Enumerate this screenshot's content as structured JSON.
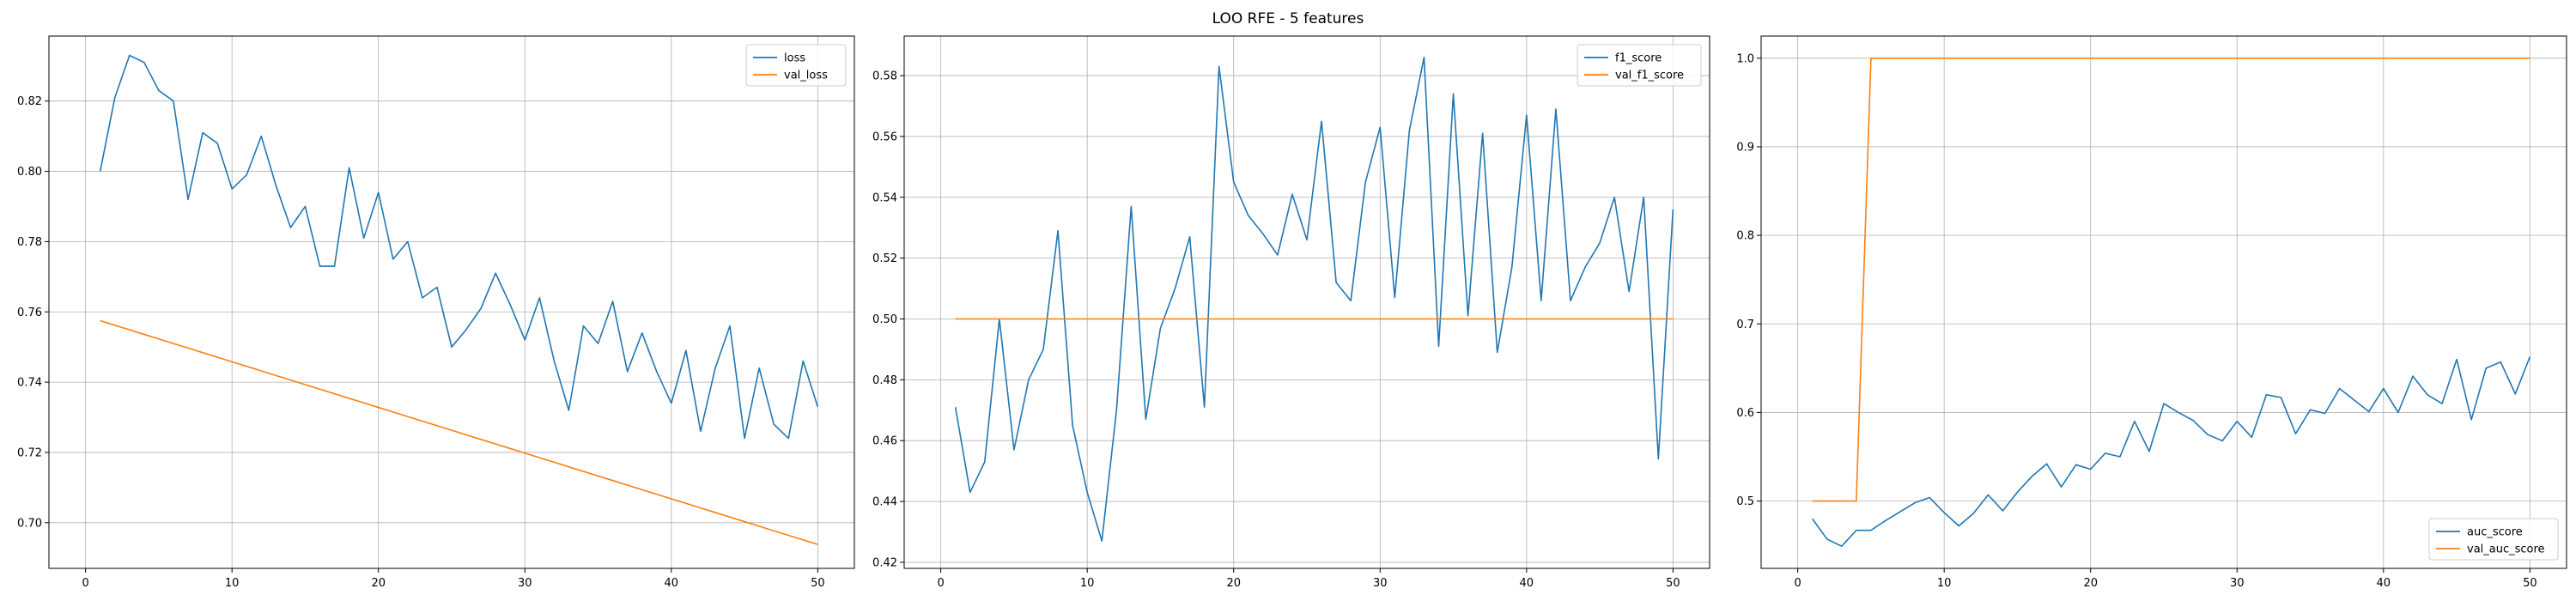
{
  "figure": {
    "suptitle": "LOO RFE - 5 features"
  },
  "colors": {
    "train": "#1f77b4",
    "val": "#ff7f0e",
    "grid": "#b0b0b0"
  },
  "chart_data": [
    {
      "type": "line",
      "title": "",
      "xlabel": "",
      "ylabel": "",
      "xlim": [
        -2.5,
        52.5
      ],
      "ylim": [
        0.687,
        0.8385
      ],
      "xticks": [
        0,
        10,
        20,
        30,
        40,
        50
      ],
      "yticks": [
        0.7,
        0.72,
        0.74,
        0.76,
        0.78,
        0.8,
        0.82
      ],
      "ytick_labels": [
        "0.70",
        "0.72",
        "0.74",
        "0.76",
        "0.78",
        "0.80",
        "0.82"
      ],
      "grid": true,
      "legend_position": "upper right",
      "x": [
        1,
        2,
        3,
        4,
        5,
        6,
        7,
        8,
        9,
        10,
        11,
        12,
        13,
        14,
        15,
        16,
        17,
        18,
        19,
        20,
        21,
        22,
        23,
        24,
        25,
        26,
        27,
        28,
        29,
        30,
        31,
        32,
        33,
        34,
        35,
        36,
        37,
        38,
        39,
        40,
        41,
        42,
        43,
        44,
        45,
        46,
        47,
        48,
        49,
        50
      ],
      "series": [
        {
          "name": "loss",
          "color": "#1f77b4",
          "values": [
            0.8,
            0.821,
            0.833,
            0.831,
            0.823,
            0.82,
            0.792,
            0.811,
            0.808,
            0.795,
            0.799,
            0.81,
            0.796,
            0.784,
            0.79,
            0.773,
            0.773,
            0.801,
            0.781,
            0.794,
            0.775,
            0.78,
            0.764,
            0.767,
            0.75,
            0.755,
            0.761,
            0.771,
            0.762,
            0.752,
            0.764,
            0.746,
            0.732,
            0.756,
            0.751,
            0.763,
            0.743,
            0.754,
            0.743,
            0.734,
            0.749,
            0.726,
            0.744,
            0.756,
            0.724,
            0.744,
            0.728,
            0.724,
            0.746,
            0.733
          ]
        },
        {
          "name": "val_loss",
          "color": "#ff7f0e",
          "values": [
            0.7575,
            0.7562,
            0.7549,
            0.7536,
            0.7523,
            0.751,
            0.7497,
            0.7484,
            0.7471,
            0.7458,
            0.7445,
            0.7432,
            0.7419,
            0.7406,
            0.7393,
            0.738,
            0.7367,
            0.7354,
            0.7341,
            0.7328,
            0.7315,
            0.7302,
            0.7289,
            0.7276,
            0.7263,
            0.725,
            0.7237,
            0.7224,
            0.7211,
            0.7198,
            0.7185,
            0.7172,
            0.7159,
            0.7146,
            0.7133,
            0.712,
            0.7107,
            0.7094,
            0.7081,
            0.7068,
            0.7055,
            0.7042,
            0.7029,
            0.7016,
            0.7003,
            0.699,
            0.6977,
            0.6964,
            0.6951,
            0.6938
          ]
        }
      ]
    },
    {
      "type": "line",
      "title": "",
      "xlabel": "",
      "ylabel": "",
      "xlim": [
        -2.5,
        52.5
      ],
      "ylim": [
        0.418,
        0.593
      ],
      "xticks": [
        0,
        10,
        20,
        30,
        40,
        50
      ],
      "yticks": [
        0.42,
        0.44,
        0.46,
        0.48,
        0.5,
        0.52,
        0.54,
        0.56,
        0.58
      ],
      "ytick_labels": [
        "0.42",
        "0.44",
        "0.46",
        "0.48",
        "0.50",
        "0.52",
        "0.54",
        "0.56",
        "0.58"
      ],
      "grid": true,
      "legend_position": "upper right",
      "x": [
        1,
        2,
        3,
        4,
        5,
        6,
        7,
        8,
        9,
        10,
        11,
        12,
        13,
        14,
        15,
        16,
        17,
        18,
        19,
        20,
        21,
        22,
        23,
        24,
        25,
        26,
        27,
        28,
        29,
        30,
        31,
        32,
        33,
        34,
        35,
        36,
        37,
        38,
        39,
        40,
        41,
        42,
        43,
        44,
        45,
        46,
        47,
        48,
        49,
        50
      ],
      "series": [
        {
          "name": "f1_score",
          "color": "#1f77b4",
          "values": [
            0.471,
            0.443,
            0.453,
            0.5,
            0.457,
            0.48,
            0.49,
            0.529,
            0.465,
            0.443,
            0.427,
            0.47,
            0.537,
            0.467,
            0.497,
            0.51,
            0.527,
            0.471,
            0.583,
            0.545,
            0.534,
            0.528,
            0.521,
            0.541,
            0.526,
            0.565,
            0.512,
            0.506,
            0.545,
            0.563,
            0.507,
            0.562,
            0.586,
            0.491,
            0.574,
            0.501,
            0.561,
            0.489,
            0.517,
            0.567,
            0.506,
            0.569,
            0.506,
            0.517,
            0.525,
            0.54,
            0.509,
            0.54,
            0.454,
            0.536
          ]
        },
        {
          "name": "val_f1_score",
          "color": "#ff7f0e",
          "values": [
            0.5,
            0.5,
            0.5,
            0.5,
            0.5,
            0.5,
            0.5,
            0.5,
            0.5,
            0.5,
            0.5,
            0.5,
            0.5,
            0.5,
            0.5,
            0.5,
            0.5,
            0.5,
            0.5,
            0.5,
            0.5,
            0.5,
            0.5,
            0.5,
            0.5,
            0.5,
            0.5,
            0.5,
            0.5,
            0.5,
            0.5,
            0.5,
            0.5,
            0.5,
            0.5,
            0.5,
            0.5,
            0.5,
            0.5,
            0.5,
            0.5,
            0.5,
            0.5,
            0.5,
            0.5,
            0.5,
            0.5,
            0.5,
            0.5,
            0.5
          ]
        }
      ]
    },
    {
      "type": "line",
      "title": "",
      "xlabel": "",
      "ylabel": "",
      "xlim": [
        -2.5,
        52.5
      ],
      "ylim": [
        0.424,
        1.025
      ],
      "xticks": [
        0,
        10,
        20,
        30,
        40,
        50
      ],
      "yticks": [
        0.5,
        0.6,
        0.7,
        0.8,
        0.9,
        1.0
      ],
      "ytick_labels": [
        "0.5",
        "0.6",
        "0.7",
        "0.8",
        "0.9",
        "1.0"
      ],
      "grid": true,
      "legend_position": "lower right",
      "x": [
        1,
        2,
        3,
        4,
        5,
        6,
        7,
        8,
        9,
        10,
        11,
        12,
        13,
        14,
        15,
        16,
        17,
        18,
        19,
        20,
        21,
        22,
        23,
        24,
        25,
        26,
        27,
        28,
        29,
        30,
        31,
        32,
        33,
        34,
        35,
        36,
        37,
        38,
        39,
        40,
        41,
        42,
        43,
        44,
        45,
        46,
        47,
        48,
        49,
        50
      ],
      "series": [
        {
          "name": "auc_score",
          "color": "#1f77b4",
          "values": [
            0.48,
            0.457,
            0.449,
            0.467,
            0.467,
            0.478,
            0.488,
            0.498,
            0.504,
            0.487,
            0.472,
            0.486,
            0.507,
            0.489,
            0.51,
            0.528,
            0.542,
            0.516,
            0.541,
            0.536,
            0.554,
            0.55,
            0.59,
            0.556,
            0.61,
            0.6,
            0.591,
            0.575,
            0.568,
            0.59,
            0.572,
            0.62,
            0.617,
            0.576,
            0.603,
            0.599,
            0.627,
            0.614,
            0.601,
            0.627,
            0.6,
            0.641,
            0.62,
            0.61,
            0.66,
            0.592,
            0.65,
            0.657,
            0.621,
            0.663
          ]
        },
        {
          "name": "val_auc_score",
          "color": "#ff7f0e",
          "values": [
            0.5,
            0.5,
            0.5,
            0.5,
            1.0,
            1.0,
            1.0,
            1.0,
            1.0,
            1.0,
            1.0,
            1.0,
            1.0,
            1.0,
            1.0,
            1.0,
            1.0,
            1.0,
            1.0,
            1.0,
            1.0,
            1.0,
            1.0,
            1.0,
            1.0,
            1.0,
            1.0,
            1.0,
            1.0,
            1.0,
            1.0,
            1.0,
            1.0,
            1.0,
            1.0,
            1.0,
            1.0,
            1.0,
            1.0,
            1.0,
            1.0,
            1.0,
            1.0,
            1.0,
            1.0,
            1.0,
            1.0,
            1.0,
            1.0,
            1.0
          ]
        }
      ]
    }
  ]
}
